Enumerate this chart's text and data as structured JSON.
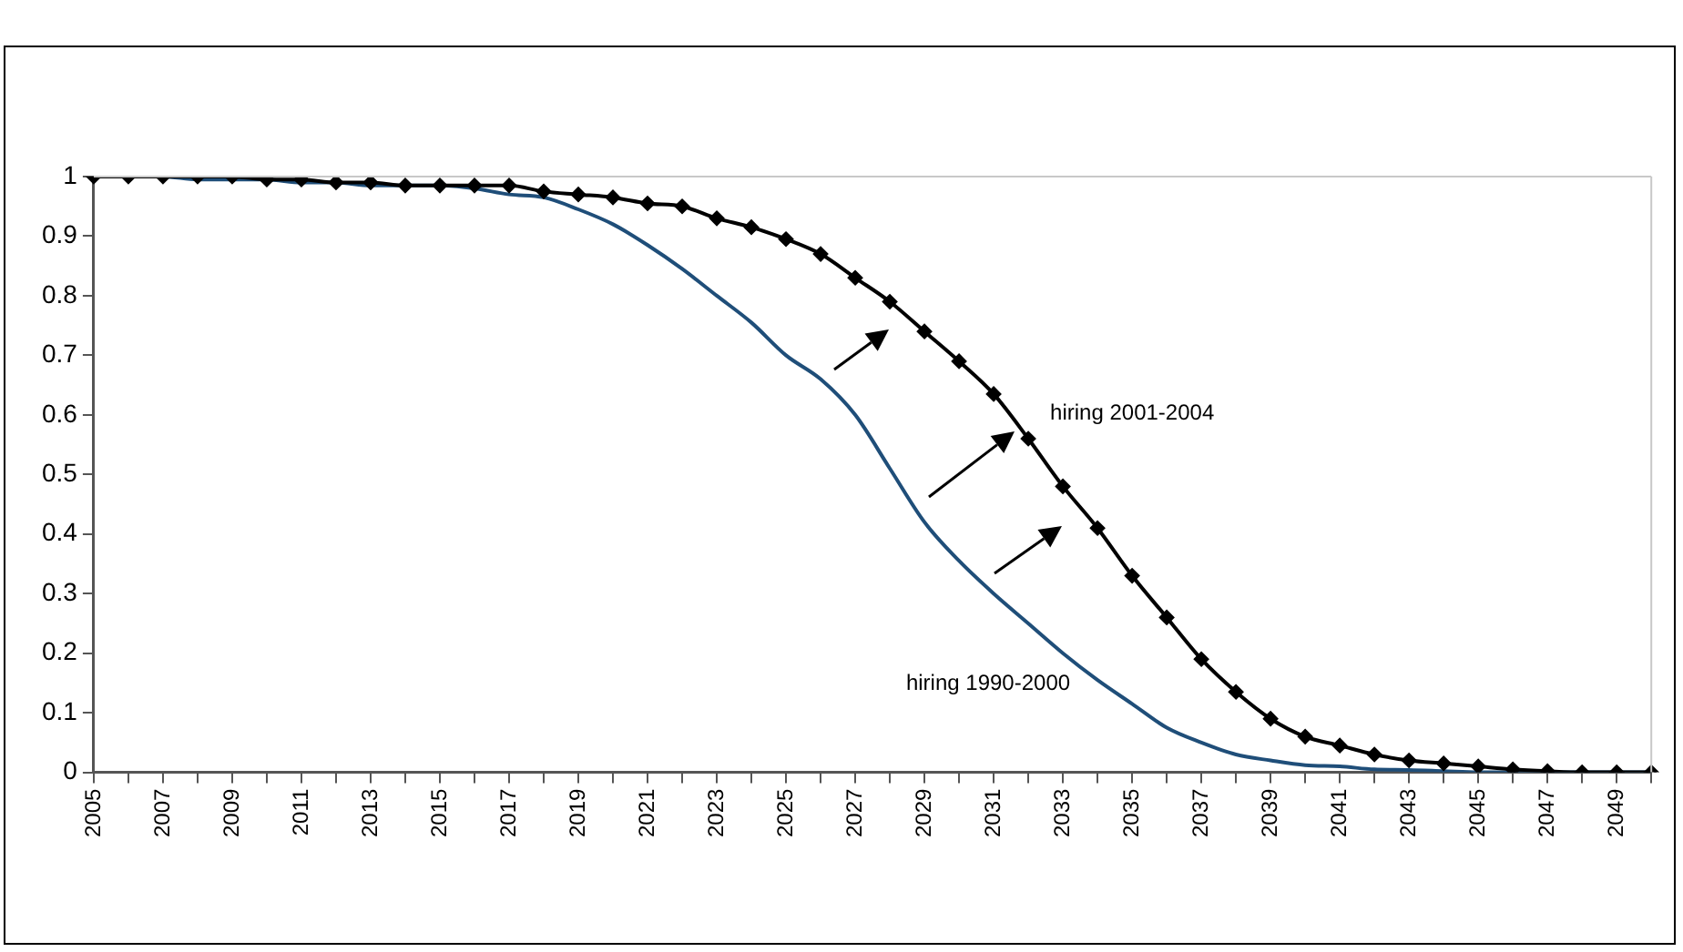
{
  "chart_data": {
    "type": "line",
    "categories": [
      "2005",
      null,
      "2007",
      null,
      "2009",
      null,
      "2011",
      null,
      "2013",
      null,
      "2015",
      null,
      "2017",
      null,
      "2019",
      null,
      "2021",
      null,
      "2023",
      null,
      "2025",
      null,
      "2027",
      null,
      "2029",
      null,
      "2031",
      null,
      "2033",
      null,
      "2035",
      null,
      "2037",
      null,
      "2039",
      null,
      "2041",
      null,
      "2043",
      null,
      "2045",
      null,
      "2047",
      null,
      "2049",
      null
    ],
    "series": [
      {
        "name": "hiring 2001-2004",
        "color": "#000000",
        "marker": "diamond",
        "values": [
          1,
          1,
          1,
          1,
          1,
          0.995,
          0.995,
          0.99,
          0.99,
          0.985,
          0.985,
          0.985,
          0.985,
          0.975,
          0.97,
          0.965,
          0.955,
          0.95,
          0.93,
          0.915,
          0.895,
          0.87,
          0.83,
          0.79,
          0.74,
          0.69,
          0.635,
          0.56,
          0.48,
          0.41,
          0.33,
          0.26,
          0.19,
          0.135,
          0.09,
          0.06,
          0.045,
          0.03,
          0.02,
          0.015,
          0.01,
          0.005,
          0.002,
          0,
          0,
          0
        ]
      },
      {
        "name": "hiring 1990-2000",
        "color": "#1f4e79",
        "marker": "none",
        "values": [
          1,
          1,
          1,
          0.995,
          0.995,
          0.995,
          0.99,
          0.99,
          0.985,
          0.985,
          0.985,
          0.98,
          0.97,
          0.965,
          0.945,
          0.92,
          0.885,
          0.845,
          0.8,
          0.755,
          0.7,
          0.66,
          0.6,
          0.51,
          0.42,
          0.355,
          0.3,
          0.25,
          0.2,
          0.155,
          0.115,
          0.075,
          0.05,
          0.03,
          0.02,
          0.012,
          0.01,
          0.005,
          0.004,
          0.002,
          0,
          0,
          0,
          0,
          0,
          0
        ]
      }
    ],
    "ylim": [
      0,
      1
    ],
    "yticks": [
      0,
      0.1,
      0.2,
      0.3,
      0.4,
      0.5,
      0.6,
      0.7,
      0.8,
      0.9,
      1
    ],
    "grid": false,
    "legend": false
  }
}
